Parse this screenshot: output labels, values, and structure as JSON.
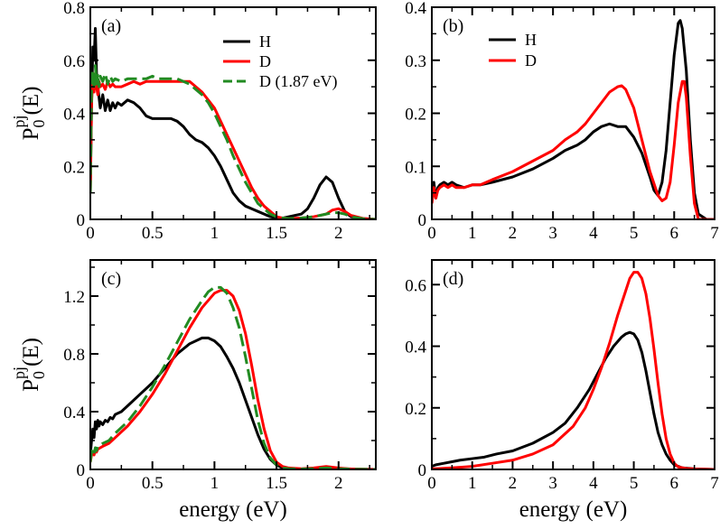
{
  "chart_data": [
    {
      "panel": "(a)",
      "type": "line",
      "xlim": [
        0,
        2.3
      ],
      "ylim": [
        0,
        0.8
      ],
      "xticks": [
        0,
        0.5,
        1,
        1.5,
        2
      ],
      "xtick_labels": [
        "0",
        "0.5",
        "1",
        "1.5",
        "2"
      ],
      "yticks": [
        0,
        0.2,
        0.4,
        0.6,
        0.8
      ],
      "ytick_labels": [
        "0",
        "0.2",
        "0.4",
        "0.6",
        "0.8"
      ],
      "ylabel": "P0pj(E)",
      "xlabel": "",
      "legend_position": "top-right",
      "series": [
        {
          "name": "H",
          "color": "#000000",
          "dash": "solid",
          "x": [
            0,
            0.01,
            0.02,
            0.03,
            0.04,
            0.05,
            0.06,
            0.07,
            0.08,
            0.1,
            0.12,
            0.14,
            0.16,
            0.18,
            0.2,
            0.22,
            0.25,
            0.3,
            0.35,
            0.4,
            0.45,
            0.5,
            0.55,
            0.6,
            0.65,
            0.7,
            0.75,
            0.8,
            0.85,
            0.9,
            0.95,
            1.0,
            1.05,
            1.1,
            1.15,
            1.2,
            1.25,
            1.3,
            1.35,
            1.4,
            1.45,
            1.5,
            1.55,
            1.6,
            1.65,
            1.7,
            1.75,
            1.8,
            1.85,
            1.9,
            1.95,
            2.0,
            2.05,
            2.1,
            2.2,
            2.3
          ],
          "y": [
            0.1,
            0.42,
            0.65,
            0.6,
            0.72,
            0.55,
            0.5,
            0.46,
            0.42,
            0.47,
            0.41,
            0.45,
            0.41,
            0.44,
            0.42,
            0.44,
            0.43,
            0.45,
            0.44,
            0.42,
            0.39,
            0.38,
            0.38,
            0.38,
            0.38,
            0.37,
            0.35,
            0.32,
            0.3,
            0.29,
            0.27,
            0.24,
            0.2,
            0.15,
            0.1,
            0.07,
            0.05,
            0.04,
            0.03,
            0.02,
            0.01,
            0.005,
            0.005,
            0.01,
            0.015,
            0.02,
            0.04,
            0.08,
            0.13,
            0.16,
            0.14,
            0.08,
            0.03,
            0.01,
            0.003,
            0.0
          ]
        },
        {
          "name": "D",
          "color": "#ff0000",
          "dash": "solid",
          "x": [
            0,
            0.01,
            0.02,
            0.03,
            0.04,
            0.05,
            0.06,
            0.07,
            0.08,
            0.1,
            0.12,
            0.14,
            0.16,
            0.18,
            0.2,
            0.25,
            0.3,
            0.35,
            0.4,
            0.45,
            0.5,
            0.55,
            0.6,
            0.65,
            0.7,
            0.75,
            0.8,
            0.85,
            0.9,
            0.95,
            1.0,
            1.05,
            1.1,
            1.15,
            1.2,
            1.25,
            1.3,
            1.35,
            1.4,
            1.45,
            1.5,
            1.55,
            1.6,
            1.7,
            1.8,
            1.9,
            1.95,
            2.0,
            2.05,
            2.1,
            2.2,
            2.3
          ],
          "y": [
            0.1,
            0.45,
            0.52,
            0.48,
            0.55,
            0.5,
            0.47,
            0.52,
            0.5,
            0.51,
            0.49,
            0.52,
            0.5,
            0.51,
            0.5,
            0.5,
            0.51,
            0.52,
            0.51,
            0.52,
            0.52,
            0.52,
            0.52,
            0.52,
            0.52,
            0.52,
            0.52,
            0.5,
            0.48,
            0.45,
            0.42,
            0.37,
            0.32,
            0.27,
            0.22,
            0.17,
            0.12,
            0.08,
            0.05,
            0.03,
            0.01,
            0.005,
            0.003,
            0.005,
            0.01,
            0.02,
            0.035,
            0.04,
            0.03,
            0.015,
            0.003,
            0.0
          ]
        },
        {
          "name": "D (1.87 eV)",
          "color": "#228b22",
          "dash": "dashed",
          "x": [
            0,
            0.01,
            0.02,
            0.03,
            0.04,
            0.05,
            0.06,
            0.07,
            0.08,
            0.1,
            0.12,
            0.14,
            0.16,
            0.18,
            0.2,
            0.25,
            0.3,
            0.35,
            0.4,
            0.45,
            0.5,
            0.55,
            0.6,
            0.65,
            0.7,
            0.75,
            0.8,
            0.85,
            0.9,
            0.95,
            1.0,
            1.05,
            1.1,
            1.15,
            1.2,
            1.25,
            1.3,
            1.35,
            1.4,
            1.45,
            1.5,
            1.55,
            1.6,
            1.7,
            1.8,
            1.9,
            1.95,
            2.0,
            2.05,
            2.1,
            2.2,
            2.3
          ],
          "y": [
            0.1,
            0.5,
            0.56,
            0.49,
            0.58,
            0.51,
            0.55,
            0.5,
            0.54,
            0.52,
            0.55,
            0.51,
            0.54,
            0.52,
            0.53,
            0.52,
            0.53,
            0.53,
            0.53,
            0.53,
            0.54,
            0.53,
            0.53,
            0.53,
            0.53,
            0.52,
            0.51,
            0.49,
            0.47,
            0.44,
            0.4,
            0.35,
            0.3,
            0.24,
            0.19,
            0.14,
            0.1,
            0.06,
            0.04,
            0.02,
            0.01,
            0.005,
            0.003,
            0.005,
            0.01,
            0.02,
            0.025,
            0.025,
            0.02,
            0.01,
            0.002,
            0.0
          ]
        }
      ]
    },
    {
      "panel": "(b)",
      "type": "line",
      "xlim": [
        0,
        7
      ],
      "ylim": [
        0,
        0.4
      ],
      "xticks": [
        0,
        1,
        2,
        3,
        4,
        5,
        6,
        7
      ],
      "xtick_labels": [
        "0",
        "1",
        "2",
        "3",
        "4",
        "5",
        "6",
        "7"
      ],
      "yticks": [
        0,
        0.1,
        0.2,
        0.3,
        0.4
      ],
      "ytick_labels": [
        "0",
        "0.1",
        "0.2",
        "0.3",
        "0.4"
      ],
      "xlabel": "",
      "ylabel": "",
      "legend_position": "top-left",
      "series": [
        {
          "name": "H",
          "color": "#000000",
          "dash": "solid",
          "x": [
            0,
            0.05,
            0.1,
            0.15,
            0.2,
            0.3,
            0.4,
            0.5,
            0.6,
            0.8,
            1.0,
            1.2,
            1.5,
            2.0,
            2.5,
            3.0,
            3.3,
            3.6,
            3.8,
            4.0,
            4.2,
            4.4,
            4.6,
            4.8,
            5.0,
            5.2,
            5.4,
            5.5,
            5.6,
            5.7,
            5.8,
            5.9,
            6.0,
            6.1,
            6.15,
            6.2,
            6.3,
            6.4,
            6.5,
            6.6,
            6.8,
            7.0
          ],
          "y": [
            0.03,
            0.07,
            0.04,
            0.06,
            0.065,
            0.07,
            0.065,
            0.07,
            0.065,
            0.06,
            0.065,
            0.065,
            0.07,
            0.08,
            0.095,
            0.115,
            0.13,
            0.14,
            0.15,
            0.165,
            0.175,
            0.18,
            0.175,
            0.175,
            0.155,
            0.125,
            0.08,
            0.055,
            0.045,
            0.07,
            0.13,
            0.22,
            0.31,
            0.37,
            0.375,
            0.36,
            0.28,
            0.15,
            0.05,
            0.01,
            0.0,
            0.0
          ]
        },
        {
          "name": "D",
          "color": "#ff0000",
          "dash": "solid",
          "x": [
            0,
            0.05,
            0.1,
            0.15,
            0.2,
            0.3,
            0.4,
            0.5,
            0.6,
            0.8,
            1.0,
            1.2,
            1.5,
            2.0,
            2.5,
            3.0,
            3.3,
            3.6,
            3.8,
            4.0,
            4.2,
            4.4,
            4.6,
            4.7,
            4.8,
            5.0,
            5.2,
            5.4,
            5.6,
            5.7,
            5.8,
            5.9,
            6.0,
            6.1,
            6.2,
            6.25,
            6.3,
            6.4,
            6.5,
            6.6,
            6.8,
            7.0
          ],
          "y": [
            0.03,
            0.06,
            0.04,
            0.055,
            0.06,
            0.065,
            0.06,
            0.065,
            0.06,
            0.06,
            0.065,
            0.065,
            0.075,
            0.09,
            0.11,
            0.13,
            0.15,
            0.165,
            0.18,
            0.2,
            0.22,
            0.24,
            0.25,
            0.252,
            0.245,
            0.21,
            0.15,
            0.09,
            0.045,
            0.035,
            0.04,
            0.07,
            0.14,
            0.22,
            0.26,
            0.26,
            0.23,
            0.12,
            0.03,
            0.0,
            0.0,
            0.0
          ]
        }
      ]
    },
    {
      "panel": "(c)",
      "type": "line",
      "xlim": [
        0,
        2.3
      ],
      "ylim": [
        0,
        1.45
      ],
      "xticks": [
        0,
        0.5,
        1,
        1.5,
        2
      ],
      "xtick_labels": [
        "0",
        "0.5",
        "1",
        "1.5",
        "2"
      ],
      "yticks": [
        0,
        0.4,
        0.8,
        1.2
      ],
      "ytick_labels": [
        "0",
        "0.4",
        "0.8",
        "1.2"
      ],
      "xlabel": "energy (eV)",
      "ylabel": "P0pj(E)",
      "series": [
        {
          "name": "H",
          "color": "#000000",
          "dash": "solid",
          "x": [
            0,
            0.01,
            0.02,
            0.03,
            0.04,
            0.05,
            0.06,
            0.07,
            0.08,
            0.1,
            0.12,
            0.14,
            0.16,
            0.18,
            0.2,
            0.25,
            0.3,
            0.4,
            0.5,
            0.6,
            0.7,
            0.8,
            0.9,
            0.95,
            1.0,
            1.05,
            1.1,
            1.15,
            1.2,
            1.25,
            1.3,
            1.35,
            1.4,
            1.45,
            1.5,
            1.55,
            1.6,
            1.7,
            1.8,
            1.9,
            2.0,
            2.1,
            2.3
          ],
          "y": [
            0.1,
            0.2,
            0.28,
            0.22,
            0.33,
            0.28,
            0.34,
            0.3,
            0.33,
            0.31,
            0.34,
            0.33,
            0.36,
            0.35,
            0.38,
            0.4,
            0.44,
            0.52,
            0.6,
            0.7,
            0.8,
            0.87,
            0.91,
            0.91,
            0.89,
            0.85,
            0.78,
            0.7,
            0.6,
            0.48,
            0.36,
            0.24,
            0.14,
            0.07,
            0.03,
            0.01,
            0.005,
            0.003,
            0.005,
            0.01,
            0.005,
            0.002,
            0.0
          ]
        },
        {
          "name": "D",
          "color": "#ff0000",
          "dash": "solid",
          "x": [
            0,
            0.01,
            0.02,
            0.03,
            0.04,
            0.05,
            0.06,
            0.08,
            0.1,
            0.15,
            0.2,
            0.3,
            0.4,
            0.5,
            0.6,
            0.7,
            0.8,
            0.9,
            1.0,
            1.05,
            1.1,
            1.15,
            1.2,
            1.25,
            1.3,
            1.35,
            1.4,
            1.45,
            1.5,
            1.55,
            1.6,
            1.7,
            1.8,
            1.9,
            2.0,
            2.1,
            2.3
          ],
          "y": [
            0.05,
            0.1,
            0.12,
            0.1,
            0.13,
            0.12,
            0.14,
            0.15,
            0.16,
            0.18,
            0.22,
            0.3,
            0.4,
            0.52,
            0.66,
            0.82,
            0.98,
            1.12,
            1.22,
            1.24,
            1.24,
            1.2,
            1.1,
            0.94,
            0.72,
            0.48,
            0.28,
            0.13,
            0.05,
            0.02,
            0.01,
            0.005,
            0.01,
            0.02,
            0.01,
            0.003,
            0.0
          ]
        },
        {
          "name": "D (1.87 eV)",
          "color": "#228b22",
          "dash": "dashed",
          "x": [
            0,
            0.01,
            0.02,
            0.03,
            0.04,
            0.05,
            0.06,
            0.08,
            0.1,
            0.15,
            0.2,
            0.3,
            0.4,
            0.5,
            0.6,
            0.7,
            0.8,
            0.9,
            0.95,
            1.0,
            1.05,
            1.1,
            1.15,
            1.2,
            1.25,
            1.3,
            1.35,
            1.4,
            1.45,
            1.5,
            1.55,
            1.6,
            1.7,
            1.8,
            1.9,
            2.0,
            2.1,
            2.3
          ],
          "y": [
            0.05,
            0.12,
            0.14,
            0.11,
            0.15,
            0.13,
            0.16,
            0.17,
            0.18,
            0.2,
            0.25,
            0.33,
            0.44,
            0.57,
            0.72,
            0.88,
            1.04,
            1.17,
            1.23,
            1.26,
            1.26,
            1.22,
            1.12,
            0.98,
            0.78,
            0.56,
            0.34,
            0.18,
            0.08,
            0.03,
            0.01,
            0.005,
            0.003,
            0.005,
            0.01,
            0.005,
            0.002,
            0.0
          ]
        }
      ]
    },
    {
      "panel": "(d)",
      "type": "line",
      "xlim": [
        0,
        7
      ],
      "ylim": [
        0,
        0.68
      ],
      "xticks": [
        0,
        1,
        2,
        3,
        4,
        5,
        6,
        7
      ],
      "xtick_labels": [
        "0",
        "1",
        "2",
        "3",
        "4",
        "5",
        "6",
        "7"
      ],
      "yticks": [
        0,
        0.2,
        0.4,
        0.6
      ],
      "ytick_labels": [
        "0",
        "0.2",
        "0.4",
        "0.6"
      ],
      "xlabel": "energy (eV)",
      "ylabel": "",
      "series": [
        {
          "name": "H",
          "color": "#000000",
          "dash": "solid",
          "x": [
            0,
            0.1,
            0.3,
            0.5,
            0.7,
            1.0,
            1.3,
            1.6,
            2.0,
            2.5,
            3.0,
            3.3,
            3.6,
            3.9,
            4.1,
            4.3,
            4.5,
            4.7,
            4.8,
            4.9,
            5.0,
            5.1,
            5.2,
            5.3,
            5.4,
            5.5,
            5.6,
            5.7,
            5.8,
            5.9,
            6.0,
            6.2,
            6.5,
            7.0
          ],
          "y": [
            0.01,
            0.015,
            0.02,
            0.025,
            0.03,
            0.035,
            0.04,
            0.05,
            0.06,
            0.085,
            0.12,
            0.15,
            0.2,
            0.26,
            0.31,
            0.36,
            0.4,
            0.43,
            0.44,
            0.445,
            0.44,
            0.42,
            0.38,
            0.32,
            0.25,
            0.18,
            0.12,
            0.08,
            0.05,
            0.03,
            0.015,
            0.005,
            0.002,
            0.0
          ]
        },
        {
          "name": "D",
          "color": "#ff0000",
          "dash": "solid",
          "x": [
            0,
            0.2,
            0.5,
            1.0,
            1.5,
            2.0,
            2.5,
            3.0,
            3.5,
            3.8,
            4.0,
            4.2,
            4.4,
            4.6,
            4.8,
            4.9,
            5.0,
            5.1,
            5.2,
            5.3,
            5.4,
            5.5,
            5.6,
            5.7,
            5.8,
            5.9,
            6.0,
            6.1,
            6.3,
            6.6,
            7.0
          ],
          "y": [
            0.002,
            0.003,
            0.005,
            0.01,
            0.02,
            0.03,
            0.05,
            0.08,
            0.14,
            0.2,
            0.26,
            0.33,
            0.41,
            0.5,
            0.58,
            0.62,
            0.64,
            0.64,
            0.62,
            0.57,
            0.49,
            0.39,
            0.28,
            0.18,
            0.1,
            0.05,
            0.02,
            0.008,
            0.003,
            0.001,
            0.0
          ]
        }
      ]
    }
  ]
}
